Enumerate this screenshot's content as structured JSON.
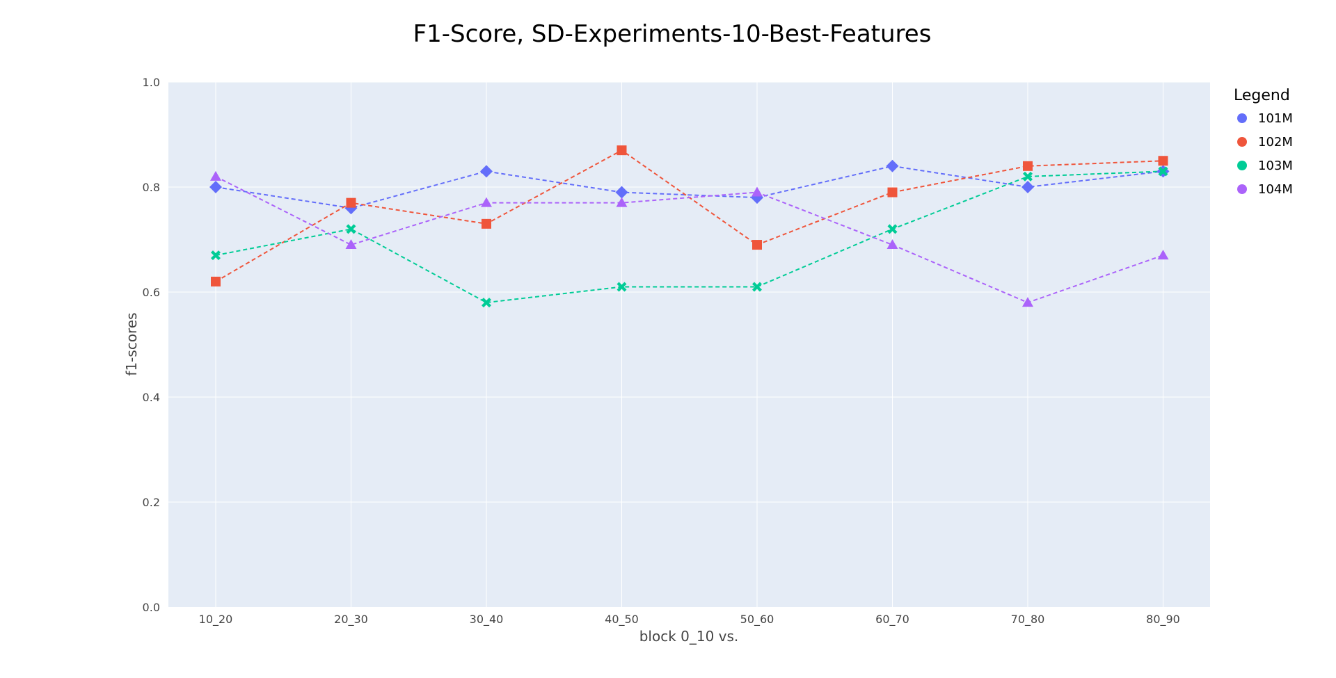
{
  "chart_data": {
    "type": "line",
    "title": "F1-Score, SD-Experiments-10-Best-Features",
    "xlabel": "block 0_10 vs.",
    "ylabel": "f1-scores",
    "ylim": [
      0,
      1.0
    ],
    "yticks": [
      "0.0",
      "0.2",
      "0.4",
      "0.6",
      "0.8",
      "1.0"
    ],
    "categories": [
      "10_20",
      "20_30",
      "30_40",
      "40_50",
      "50_60",
      "60_70",
      "70_80",
      "80_90"
    ],
    "grid": true,
    "legend_title": "Legend",
    "legend_position": "top-right",
    "series": [
      {
        "name": "101M",
        "color": "#636efa",
        "marker": "diamond",
        "values": [
          0.8,
          0.76,
          0.83,
          0.79,
          0.78,
          0.84,
          0.8,
          0.83
        ]
      },
      {
        "name": "102M",
        "color": "#ef553b",
        "marker": "square",
        "values": [
          0.62,
          0.77,
          0.73,
          0.87,
          0.69,
          0.79,
          0.84,
          0.85
        ]
      },
      {
        "name": "103M",
        "color": "#00cc96",
        "marker": "x",
        "values": [
          0.67,
          0.72,
          0.58,
          0.61,
          0.61,
          0.72,
          0.82,
          0.83
        ]
      },
      {
        "name": "104M",
        "color": "#ab63fa",
        "marker": "triangle-up",
        "values": [
          0.82,
          0.69,
          0.77,
          0.77,
          0.79,
          0.69,
          0.58,
          0.67
        ]
      }
    ]
  }
}
